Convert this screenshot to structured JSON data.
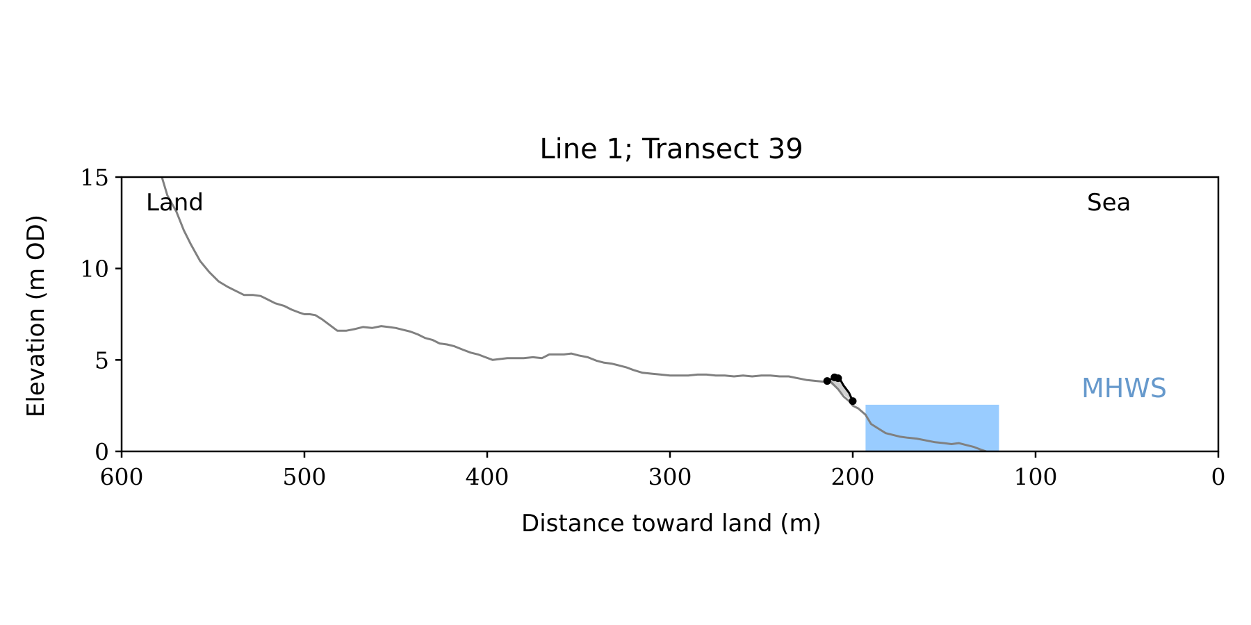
{
  "chart_data": {
    "type": "line",
    "title": "Line 1; Transect 39",
    "xlabel": "Distance toward land (m)",
    "ylabel": "Elevation (m OD)",
    "xlim": [
      600,
      0
    ],
    "ylim": [
      0,
      15
    ],
    "x_inverted": true,
    "xticks": [
      600,
      500,
      400,
      300,
      200,
      100,
      0
    ],
    "yticks": [
      0,
      5,
      10,
      15
    ],
    "grid": false,
    "annotations": {
      "land": "Land",
      "sea": "Sea",
      "mhws": "MHWS"
    },
    "colors": {
      "profile": "#808080",
      "highlight": "#000000",
      "water": "#99ccff",
      "mhws_text": "#6699cc",
      "shade": "#b3b3b3"
    },
    "series": [
      {
        "role": "profile",
        "x": [
          578,
          575,
          570,
          566,
          562,
          557,
          552,
          547,
          542,
          538,
          533,
          528,
          524,
          520,
          516,
          511,
          507,
          503,
          500,
          497,
          494,
          490,
          486,
          482,
          477,
          472,
          468,
          463,
          458,
          454,
          450,
          446,
          442,
          438,
          434,
          430,
          426,
          422,
          418,
          413,
          409,
          405,
          401,
          397,
          393,
          389,
          385,
          380,
          375,
          370,
          366,
          362,
          358,
          354,
          350,
          345,
          340,
          336,
          332,
          328,
          324,
          320,
          315,
          310,
          305,
          300,
          295,
          290,
          285,
          280,
          275,
          270,
          265,
          260,
          255,
          250,
          245,
          240,
          235,
          230,
          225,
          220,
          215,
          212,
          208,
          205,
          202,
          200,
          197,
          193,
          190,
          186,
          182,
          178,
          174,
          170,
          165,
          160,
          155,
          150,
          146,
          142,
          138,
          134,
          130,
          127
        ],
        "y": [
          15.0,
          14.0,
          13.1,
          12.1,
          11.3,
          10.4,
          9.8,
          9.3,
          9.0,
          8.8,
          8.55,
          8.55,
          8.5,
          8.3,
          8.1,
          7.95,
          7.75,
          7.6,
          7.5,
          7.5,
          7.45,
          7.2,
          6.9,
          6.6,
          6.6,
          6.7,
          6.8,
          6.75,
          6.85,
          6.8,
          6.75,
          6.65,
          6.55,
          6.4,
          6.2,
          6.1,
          5.9,
          5.85,
          5.75,
          5.55,
          5.4,
          5.3,
          5.15,
          5.0,
          5.05,
          5.1,
          5.1,
          5.1,
          5.15,
          5.1,
          5.3,
          5.3,
          5.3,
          5.35,
          5.25,
          5.15,
          4.95,
          4.85,
          4.8,
          4.7,
          4.6,
          4.45,
          4.3,
          4.25,
          4.2,
          4.15,
          4.15,
          4.15,
          4.2,
          4.2,
          4.15,
          4.15,
          4.1,
          4.15,
          4.1,
          4.15,
          4.15,
          4.1,
          4.1,
          4.0,
          3.9,
          3.85,
          3.8,
          3.8,
          3.4,
          3.0,
          2.75,
          2.5,
          2.35,
          2.0,
          1.5,
          1.25,
          1.0,
          0.9,
          0.8,
          0.75,
          0.7,
          0.6,
          0.5,
          0.45,
          0.4,
          0.45,
          0.35,
          0.25,
          0.1,
          0.0
        ]
      },
      {
        "role": "highlight",
        "x": [
          214,
          211,
          209,
          208,
          207,
          205,
          202,
          200
        ],
        "y": [
          3.85,
          4.0,
          4.05,
          4.0,
          3.95,
          3.6,
          3.2,
          2.75
        ],
        "markers_x": [
          214,
          210,
          208,
          200
        ],
        "markers_y": [
          3.85,
          4.05,
          4.0,
          2.75
        ]
      }
    ],
    "water_band": {
      "x_from": 193,
      "x_to": 120,
      "y_top": 2.55
    },
    "mhws_level": 2.55
  }
}
